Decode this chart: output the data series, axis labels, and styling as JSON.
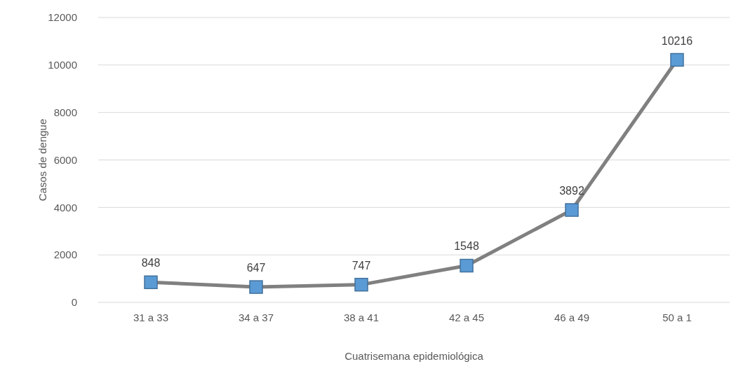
{
  "chart_data": {
    "type": "line",
    "xlabel": "Cuatrisemana epidemiológica",
    "ylabel": "Casos de dengue",
    "categories": [
      "31 a 33",
      "34 a 37",
      "38 a 41",
      "42 a 45",
      "46 a 49",
      "50 a 1"
    ],
    "series": [
      {
        "color": "#808080",
        "values": [
          848,
          647,
          747,
          1548,
          3892,
          10216
        ]
      }
    ],
    "ylim": [
      0,
      12000
    ],
    "yticks": [
      0,
      2000,
      4000,
      6000,
      8000,
      10000,
      12000
    ],
    "grid": "y",
    "marker": "square",
    "data_labels": true
  }
}
